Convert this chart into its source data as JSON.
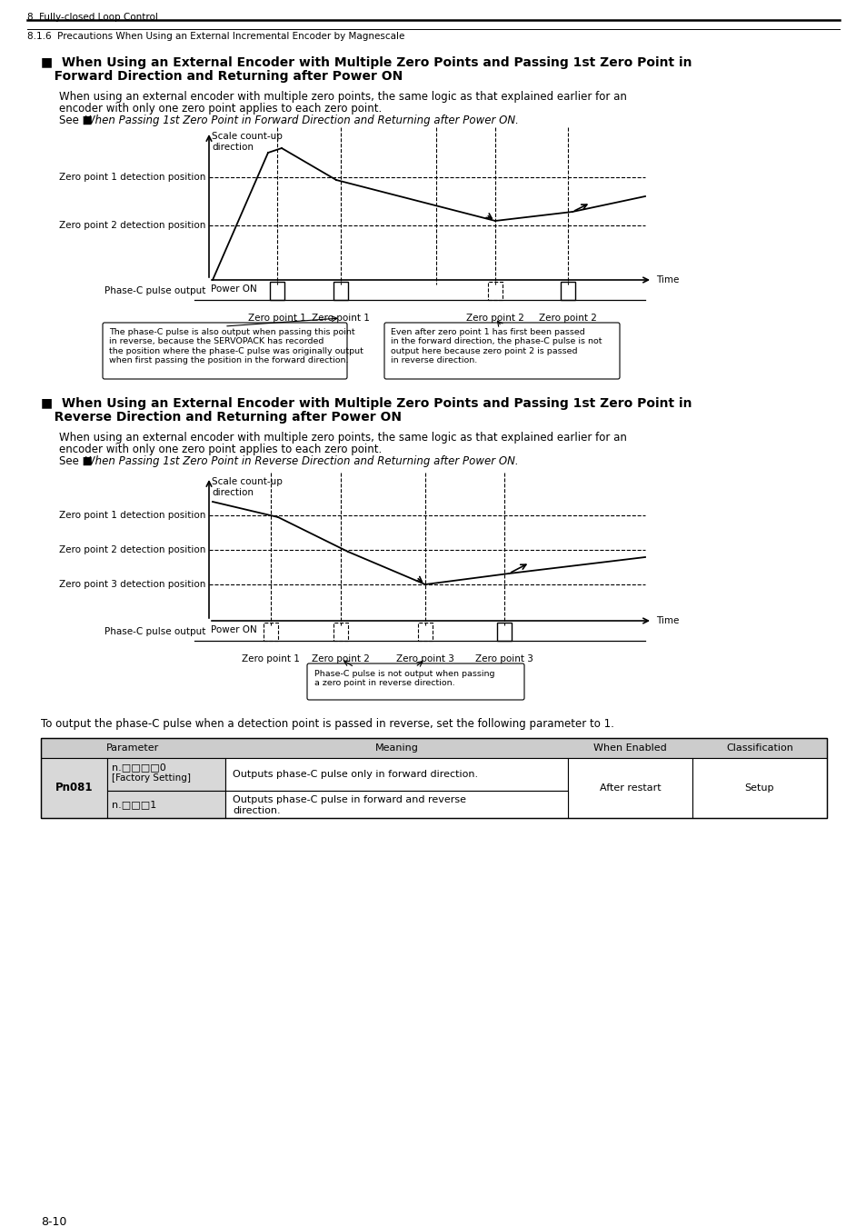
{
  "page_header_top": "8  Fully-closed Loop Control",
  "page_header_sub": "8.1.6  Precautions When Using an External Incremental Encoder by Magnescale",
  "section1_title_line1": "■  When Using an External Encoder with Multiple Zero Points and Passing 1st Zero Point in",
  "section1_title_line2": "   Forward Direction and Returning after Power ON",
  "section1_body1": "When using an external encoder with multiple zero points, the same logic as that explained earlier for an",
  "section1_body2": "encoder with only one zero point applies to each zero point.",
  "section1_ref_pre": "See ■",
  "section1_ref_italic": "When Passing 1st Zero Point in Forward Direction and Returning after Power ON.",
  "section1_diag": {
    "scale_up": "Scale count-up\ndirection",
    "zp1_detect": "Zero point 1 detection position",
    "zp2_detect": "Zero point 2 detection position",
    "power_on": "Power ON",
    "phase_c": "Phase-C pulse output",
    "time": "Time",
    "zp1_a": "Zero point 1",
    "zp1_b": "Zero point 1",
    "zp2_a": "Zero point 2",
    "zp2_b": "Zero point 2"
  },
  "note1": "The phase-C pulse is also output when passing this point\nin reverse, because the SERVOPACK has recorded\nthe position where the phase-C pulse was originally output\nwhen first passing the position in the forward direction.",
  "note2": "Even after zero point 1 has first been passed\nin the forward direction, the phase-C pulse is not\noutput here because zero point 2 is passed\nin reverse direction.",
  "section2_title_line1": "■  When Using an External Encoder with Multiple Zero Points and Passing 1st Zero Point in",
  "section2_title_line2": "   Reverse Direction and Returning after Power ON",
  "section2_body1": "When using an external encoder with multiple zero points, the same logic as that explained earlier for an",
  "section2_body2": "encoder with only one zero point applies to each zero point.",
  "section2_ref_pre": "See ■",
  "section2_ref_italic": "When Passing 1st Zero Point in Reverse Direction and Returning after Power ON.",
  "section2_diag": {
    "scale_up": "Scale count-up\ndirection",
    "zp1_detect": "Zero point 1 detection position",
    "zp2_detect": "Zero point 2 detection position",
    "zp3_detect": "Zero point 3 detection position",
    "power_on": "Power ON",
    "phase_c": "Phase-C pulse output",
    "time": "Time",
    "zp1": "Zero point 1",
    "zp2": "Zero point 2",
    "zp3_a": "Zero point 3",
    "zp3_b": "Zero point 3"
  },
  "note3": "Phase-C pulse is not output when passing\na zero point in reverse direction.",
  "param_note": "To output the phase-C pulse when a detection point is passed in reverse, set the following parameter to 1.",
  "tbl_param": "Parameter",
  "tbl_meaning": "Meaning",
  "tbl_when": "When Enabled",
  "tbl_class": "Classification",
  "tbl_pn": "Pn081",
  "tbl_p1": "n.□□□□0",
  "tbl_p1b": "[Factory Setting]",
  "tbl_m1": "Outputs phase-C pulse only in forward direction.",
  "tbl_when1": "After restart",
  "tbl_class1": "Setup",
  "tbl_p2": "n.□□□1",
  "tbl_m2a": "Outputs phase-C pulse in forward and reverse",
  "tbl_m2b": "direction.",
  "page_num": "8-10"
}
